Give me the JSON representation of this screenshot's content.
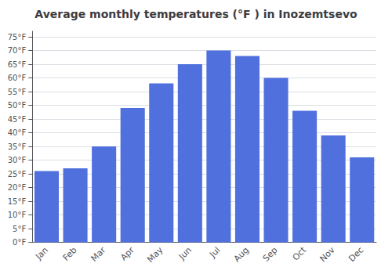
{
  "chart_data": {
    "type": "bar",
    "title": "Average monthly temperatures (°F ) in Inozemtsevo",
    "categories": [
      "Jan",
      "Feb",
      "Mar",
      "Apr",
      "May",
      "Jun",
      "Jul",
      "Aug",
      "Sep",
      "Oct",
      "Nov",
      "Dec"
    ],
    "values": [
      26,
      27,
      35,
      49,
      58,
      65,
      70,
      68,
      60,
      48,
      39,
      31
    ],
    "ylim": [
      0,
      77
    ],
    "yticks": [
      {
        "value": 0,
        "label": "0°F"
      },
      {
        "value": 5,
        "label": "5°F"
      },
      {
        "value": 10,
        "label": "10°F"
      },
      {
        "value": 15,
        "label": "15°F"
      },
      {
        "value": 20,
        "label": "20°F"
      },
      {
        "value": 25,
        "label": "25°F"
      },
      {
        "value": 30,
        "label": "30°F"
      },
      {
        "value": 35,
        "label": "35°F"
      },
      {
        "value": 40,
        "label": "40°F"
      },
      {
        "value": 45,
        "label": "45°F"
      },
      {
        "value": 50,
        "label": "50°F"
      },
      {
        "value": 55,
        "label": "55°F"
      },
      {
        "value": 60,
        "label": "60°F"
      },
      {
        "value": 65,
        "label": "65°F"
      },
      {
        "value": 70,
        "label": "70°F"
      },
      {
        "value": 75,
        "label": "75°F"
      }
    ],
    "grid": true
  }
}
